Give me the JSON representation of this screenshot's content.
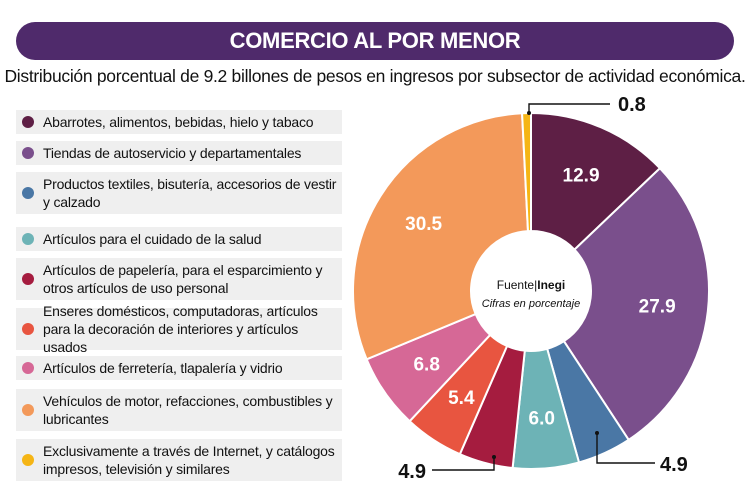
{
  "header": {
    "title": "COMERCIO AL POR MENOR",
    "subtitle": "Distribución porcentual de 9.2 billones de pesos en ingresos por subsector de actividad económica."
  },
  "center": {
    "source_prefix": "Fuente|",
    "source_name": "Inegi",
    "note": "Cifras en porcentaje"
  },
  "chart_data": {
    "type": "pie",
    "unit": "%",
    "slices": [
      {
        "label": "Abarrotes, alimentos, bebidas, hielo y tabaco",
        "value": 12.9,
        "value_label": "12.9",
        "color": "#5e1f45"
      },
      {
        "label": "Tiendas de autoservicio y departamentales",
        "value": 27.9,
        "value_label": "27.9",
        "color": "#7a4f8c"
      },
      {
        "label": "Productos textiles, bisutería, accesorios de vestir y calzado",
        "value": 4.9,
        "value_label": "4.9",
        "color": "#4a77a5"
      },
      {
        "label": "Artículos para el cuidado de la salud",
        "value": 6.0,
        "value_label": "6.0",
        "color": "#6db3b6"
      },
      {
        "label": "Artículos de papelería, para el esparcimiento y otros artículos de uso personal",
        "value": 4.9,
        "value_label": "4.9",
        "color": "#a51c3f"
      },
      {
        "label": "Enseres domésticos, computadoras, artículos para la decoración de interiores y artículos usados",
        "value": 5.4,
        "value_label": "5.4",
        "color": "#e85540"
      },
      {
        "label": "Artículos de ferretería, tlapalería y vidrio",
        "value": 6.8,
        "value_label": "6.8",
        "color": "#d66896"
      },
      {
        "label": "Vehículos de motor, refacciones, combustibles y lubricantes",
        "value": 30.5,
        "value_label": "30.5",
        "color": "#f3995a"
      },
      {
        "label": "Exclusivamente a través de Internet, y catálogos impresos, televisión y similares",
        "value": 0.8,
        "value_label": "0.8",
        "color": "#f5b515"
      }
    ]
  }
}
